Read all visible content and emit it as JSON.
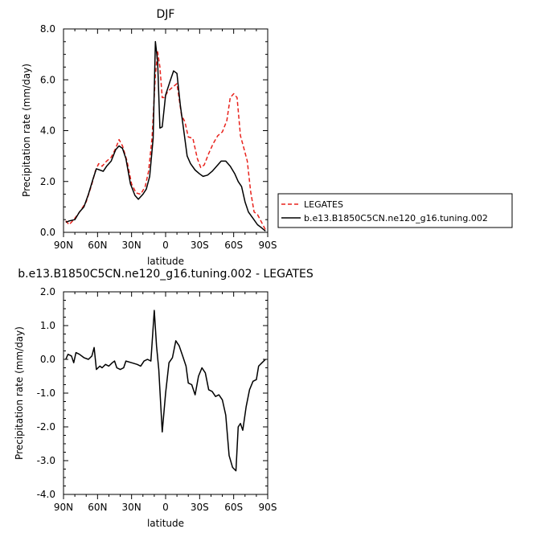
{
  "chart_data": [
    {
      "type": "line",
      "title": "DJF",
      "xlabel": "latitude",
      "ylabel": "Precipitation rate  (mm/day)",
      "x_tick_labels": [
        "90N",
        "60N",
        "30N",
        "0",
        "30S",
        "60S",
        "90S"
      ],
      "x_ticks": [
        90,
        60,
        30,
        0,
        -30,
        -60,
        -90
      ],
      "xlim": [
        90,
        -90
      ],
      "y_tick_labels": [
        "0.0",
        "2.0",
        "4.0",
        "6.0",
        "8.0"
      ],
      "y_ticks": [
        0,
        2,
        4,
        6,
        8
      ],
      "ylim": [
        0,
        8
      ],
      "grid": false,
      "legend_position": "right",
      "series": [
        {
          "name": "LEGATES",
          "color": "#e8221c",
          "dash": true,
          "points": [
            [
              88,
              0.45
            ],
            [
              85,
              0.3
            ],
            [
              80,
              0.55
            ],
            [
              75,
              0.85
            ],
            [
              70,
              1.2
            ],
            [
              65,
              1.9
            ],
            [
              62,
              2.4
            ],
            [
              59,
              2.7
            ],
            [
              56,
              2.6
            ],
            [
              52,
              2.8
            ],
            [
              48,
              2.95
            ],
            [
              44,
              3.3
            ],
            [
              41,
              3.65
            ],
            [
              38,
              3.4
            ],
            [
              34,
              2.8
            ],
            [
              30,
              1.9
            ],
            [
              26,
              1.55
            ],
            [
              22,
              1.5
            ],
            [
              18,
              1.8
            ],
            [
              15,
              2.4
            ],
            [
              12,
              3.7
            ],
            [
              9,
              6.2
            ],
            [
              7,
              7.1
            ],
            [
              5,
              6.5
            ],
            [
              3,
              5.3
            ],
            [
              1,
              5.3
            ],
            [
              -2,
              5.55
            ],
            [
              -6,
              5.7
            ],
            [
              -10,
              5.85
            ],
            [
              -14,
              4.6
            ],
            [
              -17,
              4.35
            ],
            [
              -20,
              3.75
            ],
            [
              -24,
              3.7
            ],
            [
              -28,
              2.9
            ],
            [
              -31,
              2.55
            ],
            [
              -34,
              2.65
            ],
            [
              -38,
              3.1
            ],
            [
              -42,
              3.5
            ],
            [
              -46,
              3.8
            ],
            [
              -50,
              3.95
            ],
            [
              -54,
              4.4
            ],
            [
              -57,
              5.3
            ],
            [
              -60,
              5.45
            ],
            [
              -63,
              5.3
            ],
            [
              -66,
              3.8
            ],
            [
              -69,
              3.3
            ],
            [
              -72,
              2.8
            ],
            [
              -75,
              1.6
            ],
            [
              -78,
              0.8
            ],
            [
              -81,
              0.7
            ],
            [
              -84,
              0.45
            ],
            [
              -88,
              0.1
            ]
          ]
        },
        {
          "name": "b.e13.B1850C5CN.ne120_g16.tuning.002",
          "color": "#000000",
          "dash": false,
          "points": [
            [
              88,
              0.4
            ],
            [
              85,
              0.45
            ],
            [
              80,
              0.5
            ],
            [
              76,
              0.8
            ],
            [
              72,
              1.0
            ],
            [
              68,
              1.5
            ],
            [
              64,
              2.1
            ],
            [
              61,
              2.5
            ],
            [
              58,
              2.45
            ],
            [
              55,
              2.4
            ],
            [
              52,
              2.6
            ],
            [
              48,
              2.8
            ],
            [
              44,
              3.25
            ],
            [
              41,
              3.4
            ],
            [
              38,
              3.3
            ],
            [
              35,
              2.9
            ],
            [
              31,
              1.9
            ],
            [
              27,
              1.45
            ],
            [
              24,
              1.3
            ],
            [
              20,
              1.5
            ],
            [
              17,
              1.7
            ],
            [
              14,
              2.2
            ],
            [
              11,
              3.7
            ],
            [
              9,
              7.5
            ],
            [
              7,
              6.7
            ],
            [
              5,
              4.1
            ],
            [
              3,
              4.15
            ],
            [
              0,
              5.4
            ],
            [
              -4,
              5.95
            ],
            [
              -7,
              6.35
            ],
            [
              -10,
              6.25
            ],
            [
              -13,
              5.0
            ],
            [
              -16,
              4.0
            ],
            [
              -19,
              3.0
            ],
            [
              -22,
              2.7
            ],
            [
              -26,
              2.45
            ],
            [
              -30,
              2.3
            ],
            [
              -33,
              2.2
            ],
            [
              -37,
              2.25
            ],
            [
              -41,
              2.4
            ],
            [
              -45,
              2.6
            ],
            [
              -49,
              2.8
            ],
            [
              -53,
              2.8
            ],
            [
              -57,
              2.6
            ],
            [
              -61,
              2.3
            ],
            [
              -64,
              2.0
            ],
            [
              -67,
              1.8
            ],
            [
              -70,
              1.2
            ],
            [
              -73,
              0.8
            ],
            [
              -77,
              0.55
            ],
            [
              -81,
              0.3
            ],
            [
              -84,
              0.2
            ],
            [
              -88,
              0.05
            ]
          ]
        }
      ]
    },
    {
      "type": "line",
      "title": "b.e13.B1850C5CN.ne120_g16.tuning.002 - LEGATES",
      "xlabel": "latitude",
      "ylabel": "Precipitation rate  (mm/day)",
      "x_tick_labels": [
        "90N",
        "60N",
        "30N",
        "0",
        "30S",
        "60S",
        "90S"
      ],
      "x_ticks": [
        90,
        60,
        30,
        0,
        -30,
        -60,
        -90
      ],
      "xlim": [
        90,
        -90
      ],
      "y_tick_labels": [
        "-4.0",
        "-3.0",
        "-2.0",
        "-1.0",
        "0.0",
        "1.0",
        "2.0"
      ],
      "y_ticks": [
        -4,
        -3,
        -2,
        -1,
        0,
        1,
        2
      ],
      "ylim": [
        -4,
        2
      ],
      "grid": false,
      "series": [
        {
          "color": "#000000",
          "dash": false,
          "points": [
            [
              88,
              0.0
            ],
            [
              86,
              0.15
            ],
            [
              83,
              0.1
            ],
            [
              81,
              -0.1
            ],
            [
              79,
              0.2
            ],
            [
              76,
              0.15
            ],
            [
              72,
              0.05
            ],
            [
              68,
              0.0
            ],
            [
              65,
              0.1
            ],
            [
              63,
              0.35
            ],
            [
              61,
              -0.3
            ],
            [
              58,
              -0.2
            ],
            [
              56,
              -0.25
            ],
            [
              53,
              -0.15
            ],
            [
              50,
              -0.2
            ],
            [
              47,
              -0.1
            ],
            [
              45,
              -0.05
            ],
            [
              43,
              -0.25
            ],
            [
              40,
              -0.3
            ],
            [
              37,
              -0.25
            ],
            [
              35,
              -0.05
            ],
            [
              30,
              -0.1
            ],
            [
              25,
              -0.15
            ],
            [
              22,
              -0.2
            ],
            [
              19,
              -0.05
            ],
            [
              16,
              0.0
            ],
            [
              13,
              -0.05
            ],
            [
              10,
              1.45
            ],
            [
              8,
              0.4
            ],
            [
              6,
              -0.3
            ],
            [
              3,
              -2.15
            ],
            [
              0,
              -1.0
            ],
            [
              -3,
              -0.1
            ],
            [
              -6,
              0.05
            ],
            [
              -9,
              0.55
            ],
            [
              -12,
              0.4
            ],
            [
              -15,
              0.1
            ],
            [
              -18,
              -0.2
            ],
            [
              -20,
              -0.7
            ],
            [
              -23,
              -0.75
            ],
            [
              -26,
              -1.05
            ],
            [
              -29,
              -0.5
            ],
            [
              -32,
              -0.25
            ],
            [
              -35,
              -0.4
            ],
            [
              -38,
              -0.9
            ],
            [
              -41,
              -0.95
            ],
            [
              -44,
              -1.1
            ],
            [
              -47,
              -1.05
            ],
            [
              -50,
              -1.2
            ],
            [
              -53,
              -1.65
            ],
            [
              -56,
              -2.85
            ],
            [
              -59,
              -3.2
            ],
            [
              -62,
              -3.3
            ],
            [
              -64,
              -2.0
            ],
            [
              -66,
              -1.9
            ],
            [
              -68,
              -2.1
            ],
            [
              -71,
              -1.4
            ],
            [
              -74,
              -0.9
            ],
            [
              -77,
              -0.65
            ],
            [
              -80,
              -0.6
            ],
            [
              -82,
              -0.2
            ],
            [
              -85,
              -0.1
            ],
            [
              -88,
              0.0
            ]
          ]
        }
      ]
    }
  ]
}
